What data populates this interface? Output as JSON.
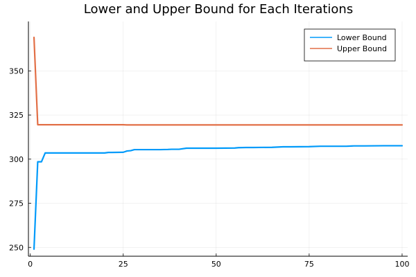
{
  "chart_data": {
    "type": "line",
    "title": "Lower and Upper Bound for Each Iterations",
    "xlabel": "",
    "ylabel": "",
    "xlim": [
      -0.5,
      101.5
    ],
    "ylim": [
      245,
      378
    ],
    "xticks": [
      0,
      25,
      50,
      75,
      100
    ],
    "yticks": [
      250,
      275,
      300,
      325,
      350
    ],
    "grid": true,
    "legend_position": "top-right",
    "series": [
      {
        "name": "Lower Bound",
        "color": "#009AFA",
        "x": [
          1,
          2,
          3,
          4,
          5,
          10,
          15,
          20,
          21,
          22,
          25,
          26,
          27,
          28,
          30,
          35,
          37,
          38,
          40,
          42,
          45,
          50,
          55,
          56,
          58,
          60,
          65,
          68,
          70,
          75,
          78,
          80,
          85,
          87,
          90,
          95,
          100
        ],
        "y": [
          249,
          298.5,
          298.5,
          303.5,
          303.5,
          303.5,
          303.5,
          303.5,
          303.8,
          303.8,
          303.9,
          304.6,
          304.8,
          305.4,
          305.4,
          305.4,
          305.5,
          305.6,
          305.6,
          306.2,
          306.2,
          306.2,
          306.3,
          306.5,
          306.6,
          306.6,
          306.7,
          307,
          307,
          307.1,
          307.3,
          307.3,
          307.3,
          307.5,
          307.5,
          307.6,
          307.6
        ]
      },
      {
        "name": "Upper Bound",
        "color": "#E26F46",
        "x": [
          1,
          2,
          3,
          10,
          25,
          26,
          50,
          75,
          100
        ],
        "y": [
          369,
          319.5,
          319.5,
          319.5,
          319.5,
          319.4,
          319.4,
          319.4,
          319.4
        ]
      }
    ]
  }
}
